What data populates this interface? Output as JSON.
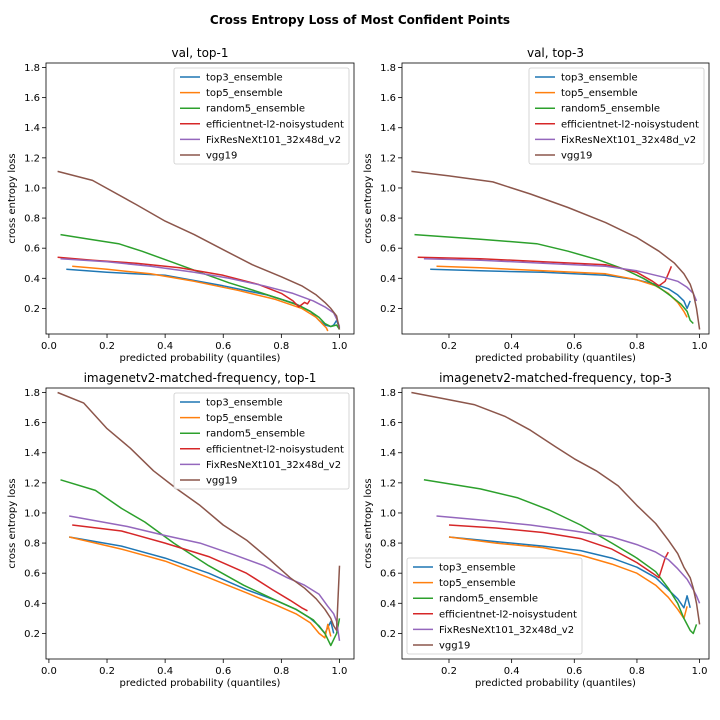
{
  "figure": {
    "title": "Cross Entropy Loss of Most Confident Points"
  },
  "colors": {
    "top3_ensemble": "#1f77b4",
    "top5_ensemble": "#ff7f0e",
    "random5_ensemble": "#2ca02c",
    "efficientnet-l2-noisystudent": "#d62728",
    "FixResNeXt101_32x48d_v2": "#9467bd",
    "vgg19": "#8c564b"
  },
  "chart_data": [
    {
      "type": "line",
      "title": "val, top-1",
      "xlabel": "predicted probability (quantiles)",
      "ylabel": "cross entropy loss",
      "xlim": [
        -0.01,
        1.05
      ],
      "ylim": [
        0.03,
        1.83
      ],
      "xticks": [
        "0.0",
        "0.2",
        "0.4",
        "0.6",
        "0.8",
        "1.0"
      ],
      "yticks": [
        "0.2",
        "0.4",
        "0.6",
        "0.8",
        "1.0",
        "1.2",
        "1.4",
        "1.6",
        "1.8"
      ],
      "grid": false,
      "legend": "upper right",
      "series": [
        {
          "name": "top3_ensemble",
          "x": [
            0.06,
            0.2,
            0.4,
            0.6,
            0.75,
            0.85,
            0.9,
            0.93,
            0.95,
            0.97,
            0.98,
            0.99,
            1.0
          ],
          "y": [
            0.46,
            0.44,
            0.42,
            0.35,
            0.29,
            0.23,
            0.18,
            0.12,
            0.09,
            0.08,
            0.09,
            0.12,
            0.07
          ]
        },
        {
          "name": "top5_ensemble",
          "x": [
            0.08,
            0.2,
            0.35,
            0.5,
            0.65,
            0.78,
            0.87,
            0.92,
            0.94,
            0.955,
            0.96
          ],
          "y": [
            0.48,
            0.46,
            0.43,
            0.38,
            0.32,
            0.26,
            0.2,
            0.14,
            0.1,
            0.07,
            0.05
          ]
        },
        {
          "name": "random5_ensemble",
          "x": [
            0.04,
            0.14,
            0.24,
            0.32,
            0.42,
            0.52,
            0.62,
            0.72,
            0.8,
            0.86,
            0.9,
            0.93,
            0.95,
            0.97,
            0.99,
            1.0
          ],
          "y": [
            0.69,
            0.66,
            0.63,
            0.58,
            0.51,
            0.44,
            0.37,
            0.31,
            0.26,
            0.22,
            0.18,
            0.14,
            0.1,
            0.08,
            0.09,
            0.06
          ]
        },
        {
          "name": "efficientnet-l2-noisystudent",
          "x": [
            0.03,
            0.15,
            0.3,
            0.45,
            0.6,
            0.72,
            0.8,
            0.84,
            0.86,
            0.88,
            0.89,
            0.9
          ],
          "y": [
            0.54,
            0.52,
            0.5,
            0.47,
            0.42,
            0.36,
            0.3,
            0.25,
            0.21,
            0.24,
            0.23,
            0.26
          ]
        },
        {
          "name": "FixResNeXt101_32x48d_v2",
          "x": [
            0.04,
            0.2,
            0.35,
            0.5,
            0.62,
            0.74,
            0.84,
            0.91,
            0.95,
            0.98,
            0.99,
            1.0
          ],
          "y": [
            0.53,
            0.51,
            0.48,
            0.44,
            0.4,
            0.35,
            0.3,
            0.25,
            0.21,
            0.17,
            0.13,
            0.08
          ]
        },
        {
          "name": "vgg19",
          "x": [
            0.03,
            0.15,
            0.3,
            0.4,
            0.5,
            0.6,
            0.7,
            0.8,
            0.87,
            0.92,
            0.95,
            0.97,
            0.99,
            1.0
          ],
          "y": [
            1.11,
            1.05,
            0.89,
            0.78,
            0.69,
            0.59,
            0.49,
            0.41,
            0.35,
            0.29,
            0.24,
            0.2,
            0.15,
            0.06
          ]
        }
      ]
    },
    {
      "type": "line",
      "title": "val, top-3",
      "xlabel": "predicted probability (quantiles)",
      "ylabel": "cross entropy loss",
      "xlim": [
        0.05,
        1.03
      ],
      "ylim": [
        0.03,
        1.83
      ],
      "xticks": [
        "0.2",
        "0.4",
        "0.6",
        "0.8",
        "1.0"
      ],
      "yticks": [
        "0.2",
        "0.4",
        "0.6",
        "0.8",
        "1.0",
        "1.2",
        "1.4",
        "1.6",
        "1.8"
      ],
      "grid": false,
      "legend": "upper right",
      "series": [
        {
          "name": "top3_ensemble",
          "x": [
            0.14,
            0.3,
            0.5,
            0.7,
            0.8,
            0.86,
            0.9,
            0.93,
            0.95,
            0.96,
            0.97
          ],
          "y": [
            0.46,
            0.45,
            0.44,
            0.42,
            0.39,
            0.36,
            0.33,
            0.29,
            0.25,
            0.2,
            0.25
          ]
        },
        {
          "name": "top5_ensemble",
          "x": [
            0.16,
            0.3,
            0.5,
            0.7,
            0.8,
            0.86,
            0.9,
            0.93,
            0.95,
            0.96
          ],
          "y": [
            0.48,
            0.47,
            0.45,
            0.43,
            0.39,
            0.35,
            0.3,
            0.24,
            0.18,
            0.14
          ]
        },
        {
          "name": "random5_ensemble",
          "x": [
            0.09,
            0.3,
            0.48,
            0.58,
            0.68,
            0.76,
            0.82,
            0.87,
            0.91,
            0.94,
            0.96,
            0.97,
            0.98
          ],
          "y": [
            0.69,
            0.66,
            0.63,
            0.58,
            0.52,
            0.46,
            0.4,
            0.34,
            0.28,
            0.23,
            0.18,
            0.12,
            0.1
          ]
        },
        {
          "name": "efficientnet-l2-noisystudent",
          "x": [
            0.1,
            0.3,
            0.5,
            0.7,
            0.8,
            0.85,
            0.87,
            0.89,
            0.9,
            0.91
          ],
          "y": [
            0.54,
            0.53,
            0.51,
            0.49,
            0.44,
            0.38,
            0.35,
            0.38,
            0.43,
            0.48
          ]
        },
        {
          "name": "FixResNeXt101_32x48d_v2",
          "x": [
            0.12,
            0.3,
            0.5,
            0.7,
            0.8,
            0.88,
            0.93,
            0.96,
            0.98,
            0.99
          ],
          "y": [
            0.53,
            0.52,
            0.5,
            0.48,
            0.45,
            0.41,
            0.38,
            0.34,
            0.3,
            0.25
          ]
        },
        {
          "name": "vgg19",
          "x": [
            0.08,
            0.2,
            0.34,
            0.46,
            0.58,
            0.7,
            0.8,
            0.87,
            0.92,
            0.95,
            0.97,
            0.98,
            0.99,
            1.0
          ],
          "y": [
            1.11,
            1.08,
            1.04,
            0.96,
            0.87,
            0.77,
            0.67,
            0.58,
            0.5,
            0.43,
            0.36,
            0.3,
            0.2,
            0.06
          ]
        }
      ]
    },
    {
      "type": "line",
      "title": "imagenetv2-matched-frequency, top-1",
      "xlabel": "predicted probability (quantiles)",
      "ylabel": "cross entropy loss",
      "xlim": [
        -0.01,
        1.05
      ],
      "ylim": [
        0.03,
        1.83
      ],
      "xticks": [
        "0.0",
        "0.2",
        "0.4",
        "0.6",
        "0.8",
        "1.0"
      ],
      "yticks": [
        "0.2",
        "0.4",
        "0.6",
        "0.8",
        "1.0",
        "1.2",
        "1.4",
        "1.6",
        "1.8"
      ],
      "grid": false,
      "legend": "upper right",
      "series": [
        {
          "name": "top3_ensemble",
          "x": [
            0.07,
            0.25,
            0.4,
            0.55,
            0.68,
            0.78,
            0.85,
            0.9,
            0.93,
            0.95,
            0.97,
            0.98
          ],
          "y": [
            0.84,
            0.78,
            0.7,
            0.6,
            0.49,
            0.42,
            0.36,
            0.3,
            0.25,
            0.2,
            0.28,
            0.2
          ]
        },
        {
          "name": "top5_ensemble",
          "x": [
            0.07,
            0.25,
            0.4,
            0.55,
            0.68,
            0.78,
            0.85,
            0.9,
            0.93,
            0.95,
            0.96,
            0.97
          ],
          "y": [
            0.84,
            0.76,
            0.68,
            0.57,
            0.47,
            0.39,
            0.33,
            0.27,
            0.2,
            0.17,
            0.26,
            0.18
          ]
        },
        {
          "name": "random5_ensemble",
          "x": [
            0.04,
            0.16,
            0.25,
            0.33,
            0.43,
            0.55,
            0.67,
            0.77,
            0.85,
            0.91,
            0.95,
            0.97,
            0.99,
            1.0
          ],
          "y": [
            1.22,
            1.15,
            1.03,
            0.94,
            0.8,
            0.65,
            0.52,
            0.43,
            0.36,
            0.29,
            0.2,
            0.12,
            0.2,
            0.3
          ]
        },
        {
          "name": "efficientnet-l2-noisystudent",
          "x": [
            0.08,
            0.25,
            0.4,
            0.55,
            0.68,
            0.77,
            0.83,
            0.87,
            0.89
          ],
          "y": [
            0.92,
            0.88,
            0.8,
            0.71,
            0.6,
            0.49,
            0.42,
            0.37,
            0.35
          ]
        },
        {
          "name": "FixResNeXt101_32x48d_v2",
          "x": [
            0.07,
            0.27,
            0.4,
            0.52,
            0.64,
            0.74,
            0.82,
            0.88,
            0.93,
            0.96,
            0.98,
            0.99,
            1.0
          ],
          "y": [
            0.98,
            0.91,
            0.85,
            0.8,
            0.72,
            0.65,
            0.57,
            0.52,
            0.46,
            0.38,
            0.33,
            0.28,
            0.15
          ]
        },
        {
          "name": "vgg19",
          "x": [
            0.03,
            0.12,
            0.2,
            0.28,
            0.36,
            0.44,
            0.52,
            0.6,
            0.68,
            0.76,
            0.83,
            0.88,
            0.92,
            0.95,
            0.97,
            0.98,
            0.99,
            1.0
          ],
          "y": [
            1.8,
            1.73,
            1.56,
            1.43,
            1.28,
            1.16,
            1.05,
            0.92,
            0.82,
            0.69,
            0.57,
            0.5,
            0.43,
            0.36,
            0.3,
            0.25,
            0.22,
            0.65
          ]
        }
      ]
    },
    {
      "type": "line",
      "title": "imagenetv2-matched-frequency, top-3",
      "xlabel": "predicted probability (quantiles)",
      "ylabel": "cross entropy loss",
      "xlim": [
        0.05,
        1.03
      ],
      "ylim": [
        0.03,
        1.83
      ],
      "xticks": [
        "0.2",
        "0.4",
        "0.6",
        "0.8",
        "1.0"
      ],
      "yticks": [
        "0.2",
        "0.4",
        "0.6",
        "0.8",
        "1.0",
        "1.2",
        "1.4",
        "1.6",
        "1.8"
      ],
      "grid": false,
      "legend": "lower left",
      "series": [
        {
          "name": "top3_ensemble",
          "x": [
            0.2,
            0.35,
            0.5,
            0.62,
            0.72,
            0.8,
            0.86,
            0.9,
            0.93,
            0.95,
            0.96,
            0.97
          ],
          "y": [
            0.84,
            0.81,
            0.78,
            0.75,
            0.7,
            0.64,
            0.57,
            0.49,
            0.43,
            0.37,
            0.45,
            0.37
          ]
        },
        {
          "name": "top5_ensemble",
          "x": [
            0.2,
            0.35,
            0.5,
            0.62,
            0.72,
            0.8,
            0.86,
            0.9,
            0.93,
            0.95,
            0.96
          ],
          "y": [
            0.84,
            0.8,
            0.77,
            0.72,
            0.66,
            0.6,
            0.52,
            0.44,
            0.36,
            0.3,
            0.38
          ]
        },
        {
          "name": "random5_ensemble",
          "x": [
            0.12,
            0.3,
            0.42,
            0.52,
            0.62,
            0.72,
            0.8,
            0.86,
            0.9,
            0.93,
            0.95,
            0.97,
            0.98,
            0.99
          ],
          "y": [
            1.22,
            1.16,
            1.1,
            1.02,
            0.92,
            0.8,
            0.7,
            0.61,
            0.5,
            0.4,
            0.3,
            0.22,
            0.2,
            0.26
          ]
        },
        {
          "name": "efficientnet-l2-noisystudent",
          "x": [
            0.2,
            0.35,
            0.5,
            0.62,
            0.72,
            0.8,
            0.85,
            0.87,
            0.89,
            0.9
          ],
          "y": [
            0.92,
            0.9,
            0.87,
            0.83,
            0.76,
            0.67,
            0.6,
            0.57,
            0.7,
            0.74
          ]
        },
        {
          "name": "FixResNeXt101_32x48d_v2",
          "x": [
            0.16,
            0.32,
            0.46,
            0.6,
            0.72,
            0.8,
            0.86,
            0.9,
            0.93,
            0.96,
            0.98,
            0.99,
            1.0
          ],
          "y": [
            0.98,
            0.95,
            0.92,
            0.88,
            0.84,
            0.79,
            0.74,
            0.69,
            0.63,
            0.56,
            0.49,
            0.45,
            0.4
          ]
        },
        {
          "name": "vgg19",
          "x": [
            0.08,
            0.18,
            0.28,
            0.38,
            0.46,
            0.54,
            0.6,
            0.67,
            0.74,
            0.8,
            0.86,
            0.9,
            0.93,
            0.95,
            0.97,
            0.98,
            0.99,
            1.0
          ],
          "y": [
            1.8,
            1.76,
            1.72,
            1.64,
            1.55,
            1.44,
            1.36,
            1.28,
            1.18,
            1.05,
            0.93,
            0.82,
            0.73,
            0.64,
            0.57,
            0.5,
            0.4,
            0.26
          ]
        }
      ]
    }
  ]
}
